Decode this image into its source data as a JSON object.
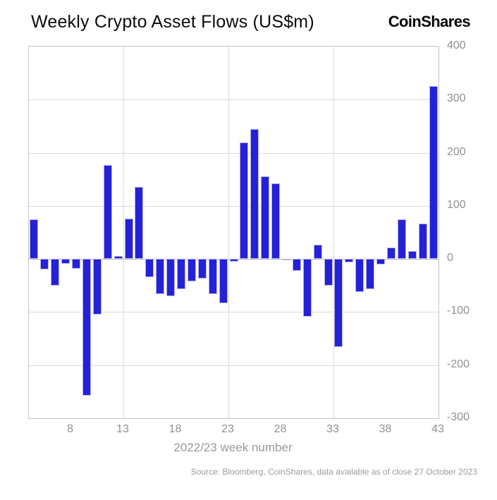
{
  "header": {
    "title": "Weekly Crypto Asset Flows (US$m)",
    "logo_text": "CoinShares"
  },
  "chart_data": {
    "type": "bar",
    "title": "Weekly Crypto Asset Flows (US$m)",
    "xlabel": "2022/23 week number",
    "ylabel": "",
    "x": [
      5,
      6,
      7,
      8,
      9,
      10,
      11,
      12,
      13,
      14,
      15,
      16,
      17,
      18,
      19,
      20,
      21,
      22,
      23,
      24,
      25,
      26,
      27,
      28,
      29,
      30,
      31,
      32,
      33,
      34,
      35,
      36,
      37,
      38,
      39,
      40,
      41,
      42,
      43
    ],
    "values": [
      75,
      -20,
      -50,
      -9,
      -18,
      -257,
      -105,
      177,
      5,
      76,
      136,
      -35,
      -66,
      -70,
      -57,
      -42,
      -37,
      -66,
      -84,
      -5,
      220,
      245,
      155,
      142,
      -3,
      -23,
      -109,
      27,
      -50,
      -166,
      -7,
      -62,
      -57,
      -11,
      22,
      74,
      15,
      66,
      325
    ],
    "ylim": [
      -300,
      400
    ],
    "yticks": [
      400,
      300,
      200,
      100,
      0,
      -100,
      -200,
      -300
    ],
    "xticks": [
      8,
      13,
      18,
      23,
      28,
      33,
      38,
      43
    ],
    "x_gridlines": [
      13,
      23,
      33,
      43
    ],
    "grid": "on",
    "legend": "none",
    "bar_color": "#2421d8",
    "bar_edge_color": "#b6b2e9",
    "grid_color": "#d9d9d9",
    "axis_label_color": "#909090",
    "source": "Source: Bloomberg, CoinShares, data available as of close 27 October 2023"
  }
}
